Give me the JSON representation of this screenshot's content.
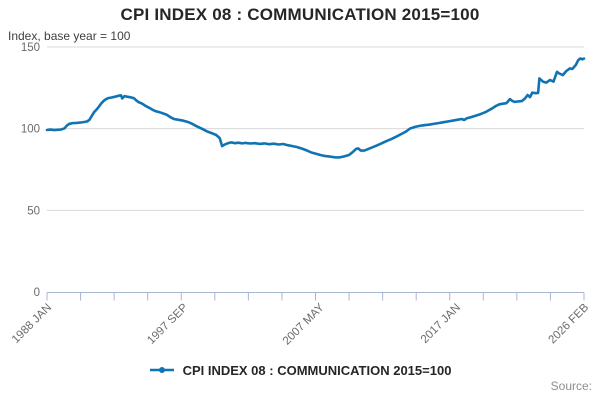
{
  "title": "CPI INDEX 08 : COMMUNICATION 2015=100",
  "subtitle": "Index, base year = 100",
  "source_label": "Source:",
  "legend": {
    "label": "CPI INDEX 08 : COMMUNICATION 2015=100"
  },
  "colors": {
    "line": "#1073b4",
    "grid": "#d9d9d9",
    "axis": "#a9b6d2",
    "tick_label": "#6b6b6b",
    "title": "#262626",
    "subtitle": "#404040",
    "source": "#8f8f8f",
    "background": "#ffffff"
  },
  "chart_data": {
    "type": "line",
    "title": "CPI INDEX 08 : COMMUNICATION 2015=100",
    "subtitle": "Index, base year = 100",
    "xlabel": "",
    "ylabel": "Index, base year = 100",
    "x_range": [
      1988.0,
      2026.083
    ],
    "ylim": [
      0,
      150
    ],
    "yticks": [
      0,
      50,
      100,
      150
    ],
    "yticklabels": [
      "0",
      "50",
      "100",
      "150"
    ],
    "xticklabels": [
      "1988 JAN",
      "1997 SEP",
      "2007 MAY",
      "2017 JAN",
      "2026 FEB"
    ],
    "xtick_values": [
      1988.0,
      1997.667,
      2007.333,
      2017.0,
      2026.083
    ],
    "minor_xtick_count": 17,
    "grid": "horizontal",
    "legend_position": "bottom",
    "series": [
      {
        "name": "CPI INDEX 08 : COMMUNICATION 2015=100",
        "points": [
          [
            1988.0,
            99.2
          ],
          [
            1988.25,
            99.4
          ],
          [
            1988.5,
            99.1
          ],
          [
            1988.75,
            99.3
          ],
          [
            1989.0,
            99.5
          ],
          [
            1989.25,
            100.2
          ],
          [
            1989.42,
            102.0
          ],
          [
            1989.58,
            103.0
          ],
          [
            1989.83,
            103.4
          ],
          [
            1990.08,
            103.5
          ],
          [
            1990.33,
            103.7
          ],
          [
            1990.58,
            104.0
          ],
          [
            1990.83,
            104.4
          ],
          [
            1991.0,
            105.3
          ],
          [
            1991.17,
            107.7
          ],
          [
            1991.33,
            110.0
          ],
          [
            1991.5,
            111.6
          ],
          [
            1991.67,
            113.3
          ],
          [
            1991.83,
            115.2
          ],
          [
            1992.0,
            116.9
          ],
          [
            1992.17,
            118.0
          ],
          [
            1992.33,
            118.7
          ],
          [
            1992.58,
            119.1
          ],
          [
            1992.83,
            119.6
          ],
          [
            1993.08,
            120.2
          ],
          [
            1993.25,
            120.4
          ],
          [
            1993.33,
            118.5
          ],
          [
            1993.5,
            120.0
          ],
          [
            1993.67,
            119.6
          ],
          [
            1993.92,
            119.2
          ],
          [
            1994.17,
            118.6
          ],
          [
            1994.33,
            117.3
          ],
          [
            1994.5,
            116.2
          ],
          [
            1994.75,
            115.3
          ],
          [
            1995.0,
            113.9
          ],
          [
            1995.25,
            112.8
          ],
          [
            1995.5,
            111.5
          ],
          [
            1995.75,
            110.6
          ],
          [
            1996.0,
            110.0
          ],
          [
            1996.25,
            109.3
          ],
          [
            1996.5,
            108.5
          ],
          [
            1996.75,
            107.0
          ],
          [
            1997.0,
            105.9
          ],
          [
            1997.33,
            105.4
          ],
          [
            1997.67,
            104.9
          ],
          [
            1998.0,
            104.1
          ],
          [
            1998.33,
            102.8
          ],
          [
            1998.67,
            101.2
          ],
          [
            1999.0,
            99.9
          ],
          [
            1999.33,
            98.4
          ],
          [
            1999.67,
            97.3
          ],
          [
            2000.0,
            96.1
          ],
          [
            2000.25,
            94.2
          ],
          [
            2000.42,
            89.3
          ],
          [
            2000.58,
            90.2
          ],
          [
            2000.83,
            91.1
          ],
          [
            2001.08,
            91.6
          ],
          [
            2001.33,
            91.1
          ],
          [
            2001.58,
            91.4
          ],
          [
            2001.83,
            91.0
          ],
          [
            2002.08,
            91.3
          ],
          [
            2002.42,
            90.9
          ],
          [
            2002.75,
            91.1
          ],
          [
            2003.08,
            90.7
          ],
          [
            2003.42,
            91.0
          ],
          [
            2003.75,
            90.5
          ],
          [
            2004.08,
            90.8
          ],
          [
            2004.42,
            90.3
          ],
          [
            2004.75,
            90.6
          ],
          [
            2005.08,
            89.9
          ],
          [
            2005.42,
            89.3
          ],
          [
            2005.75,
            88.7
          ],
          [
            2006.08,
            87.8
          ],
          [
            2006.42,
            86.7
          ],
          [
            2006.75,
            85.4
          ],
          [
            2007.08,
            84.6
          ],
          [
            2007.42,
            83.8
          ],
          [
            2007.75,
            83.2
          ],
          [
            2008.08,
            82.9
          ],
          [
            2008.42,
            82.5
          ],
          [
            2008.75,
            82.4
          ],
          [
            2009.08,
            83.0
          ],
          [
            2009.42,
            83.9
          ],
          [
            2009.67,
            85.6
          ],
          [
            2009.92,
            87.6
          ],
          [
            2010.08,
            87.9
          ],
          [
            2010.25,
            86.6
          ],
          [
            2010.5,
            86.6
          ],
          [
            2010.75,
            87.4
          ],
          [
            2011.08,
            88.6
          ],
          [
            2011.42,
            89.8
          ],
          [
            2011.75,
            91.1
          ],
          [
            2012.08,
            92.4
          ],
          [
            2012.42,
            93.6
          ],
          [
            2012.75,
            95.0
          ],
          [
            2013.08,
            96.5
          ],
          [
            2013.42,
            98.0
          ],
          [
            2013.75,
            100.1
          ],
          [
            2014.08,
            101.0
          ],
          [
            2014.42,
            101.7
          ],
          [
            2014.75,
            102.1
          ],
          [
            2015.08,
            102.4
          ],
          [
            2015.42,
            102.9
          ],
          [
            2015.75,
            103.4
          ],
          [
            2016.08,
            103.9
          ],
          [
            2016.42,
            104.4
          ],
          [
            2016.75,
            104.9
          ],
          [
            2017.08,
            105.4
          ],
          [
            2017.42,
            105.9
          ],
          [
            2017.58,
            105.3
          ],
          [
            2017.75,
            106.3
          ],
          [
            2018.08,
            107.1
          ],
          [
            2018.42,
            108.0
          ],
          [
            2018.75,
            108.9
          ],
          [
            2019.08,
            110.1
          ],
          [
            2019.33,
            111.3
          ],
          [
            2019.58,
            112.5
          ],
          [
            2019.83,
            113.9
          ],
          [
            2020.08,
            114.9
          ],
          [
            2020.33,
            115.3
          ],
          [
            2020.58,
            115.6
          ],
          [
            2020.83,
            118.1
          ],
          [
            2021.0,
            117.0
          ],
          [
            2021.17,
            116.4
          ],
          [
            2021.42,
            116.7
          ],
          [
            2021.67,
            116.9
          ],
          [
            2021.92,
            118.7
          ],
          [
            2022.08,
            120.6
          ],
          [
            2022.25,
            119.3
          ],
          [
            2022.42,
            122.1
          ],
          [
            2022.67,
            121.7
          ],
          [
            2022.83,
            121.9
          ],
          [
            2022.92,
            130.8
          ],
          [
            2023.17,
            128.8
          ],
          [
            2023.42,
            128.2
          ],
          [
            2023.67,
            129.8
          ],
          [
            2023.92,
            128.8
          ],
          [
            2024.17,
            134.8
          ],
          [
            2024.33,
            133.8
          ],
          [
            2024.58,
            132.8
          ],
          [
            2024.83,
            135.3
          ],
          [
            2025.08,
            136.9
          ],
          [
            2025.25,
            136.5
          ],
          [
            2025.5,
            139.0
          ],
          [
            2025.67,
            141.9
          ],
          [
            2025.83,
            143.0
          ],
          [
            2025.96,
            142.5
          ],
          [
            2026.08,
            142.9
          ]
        ]
      }
    ]
  }
}
